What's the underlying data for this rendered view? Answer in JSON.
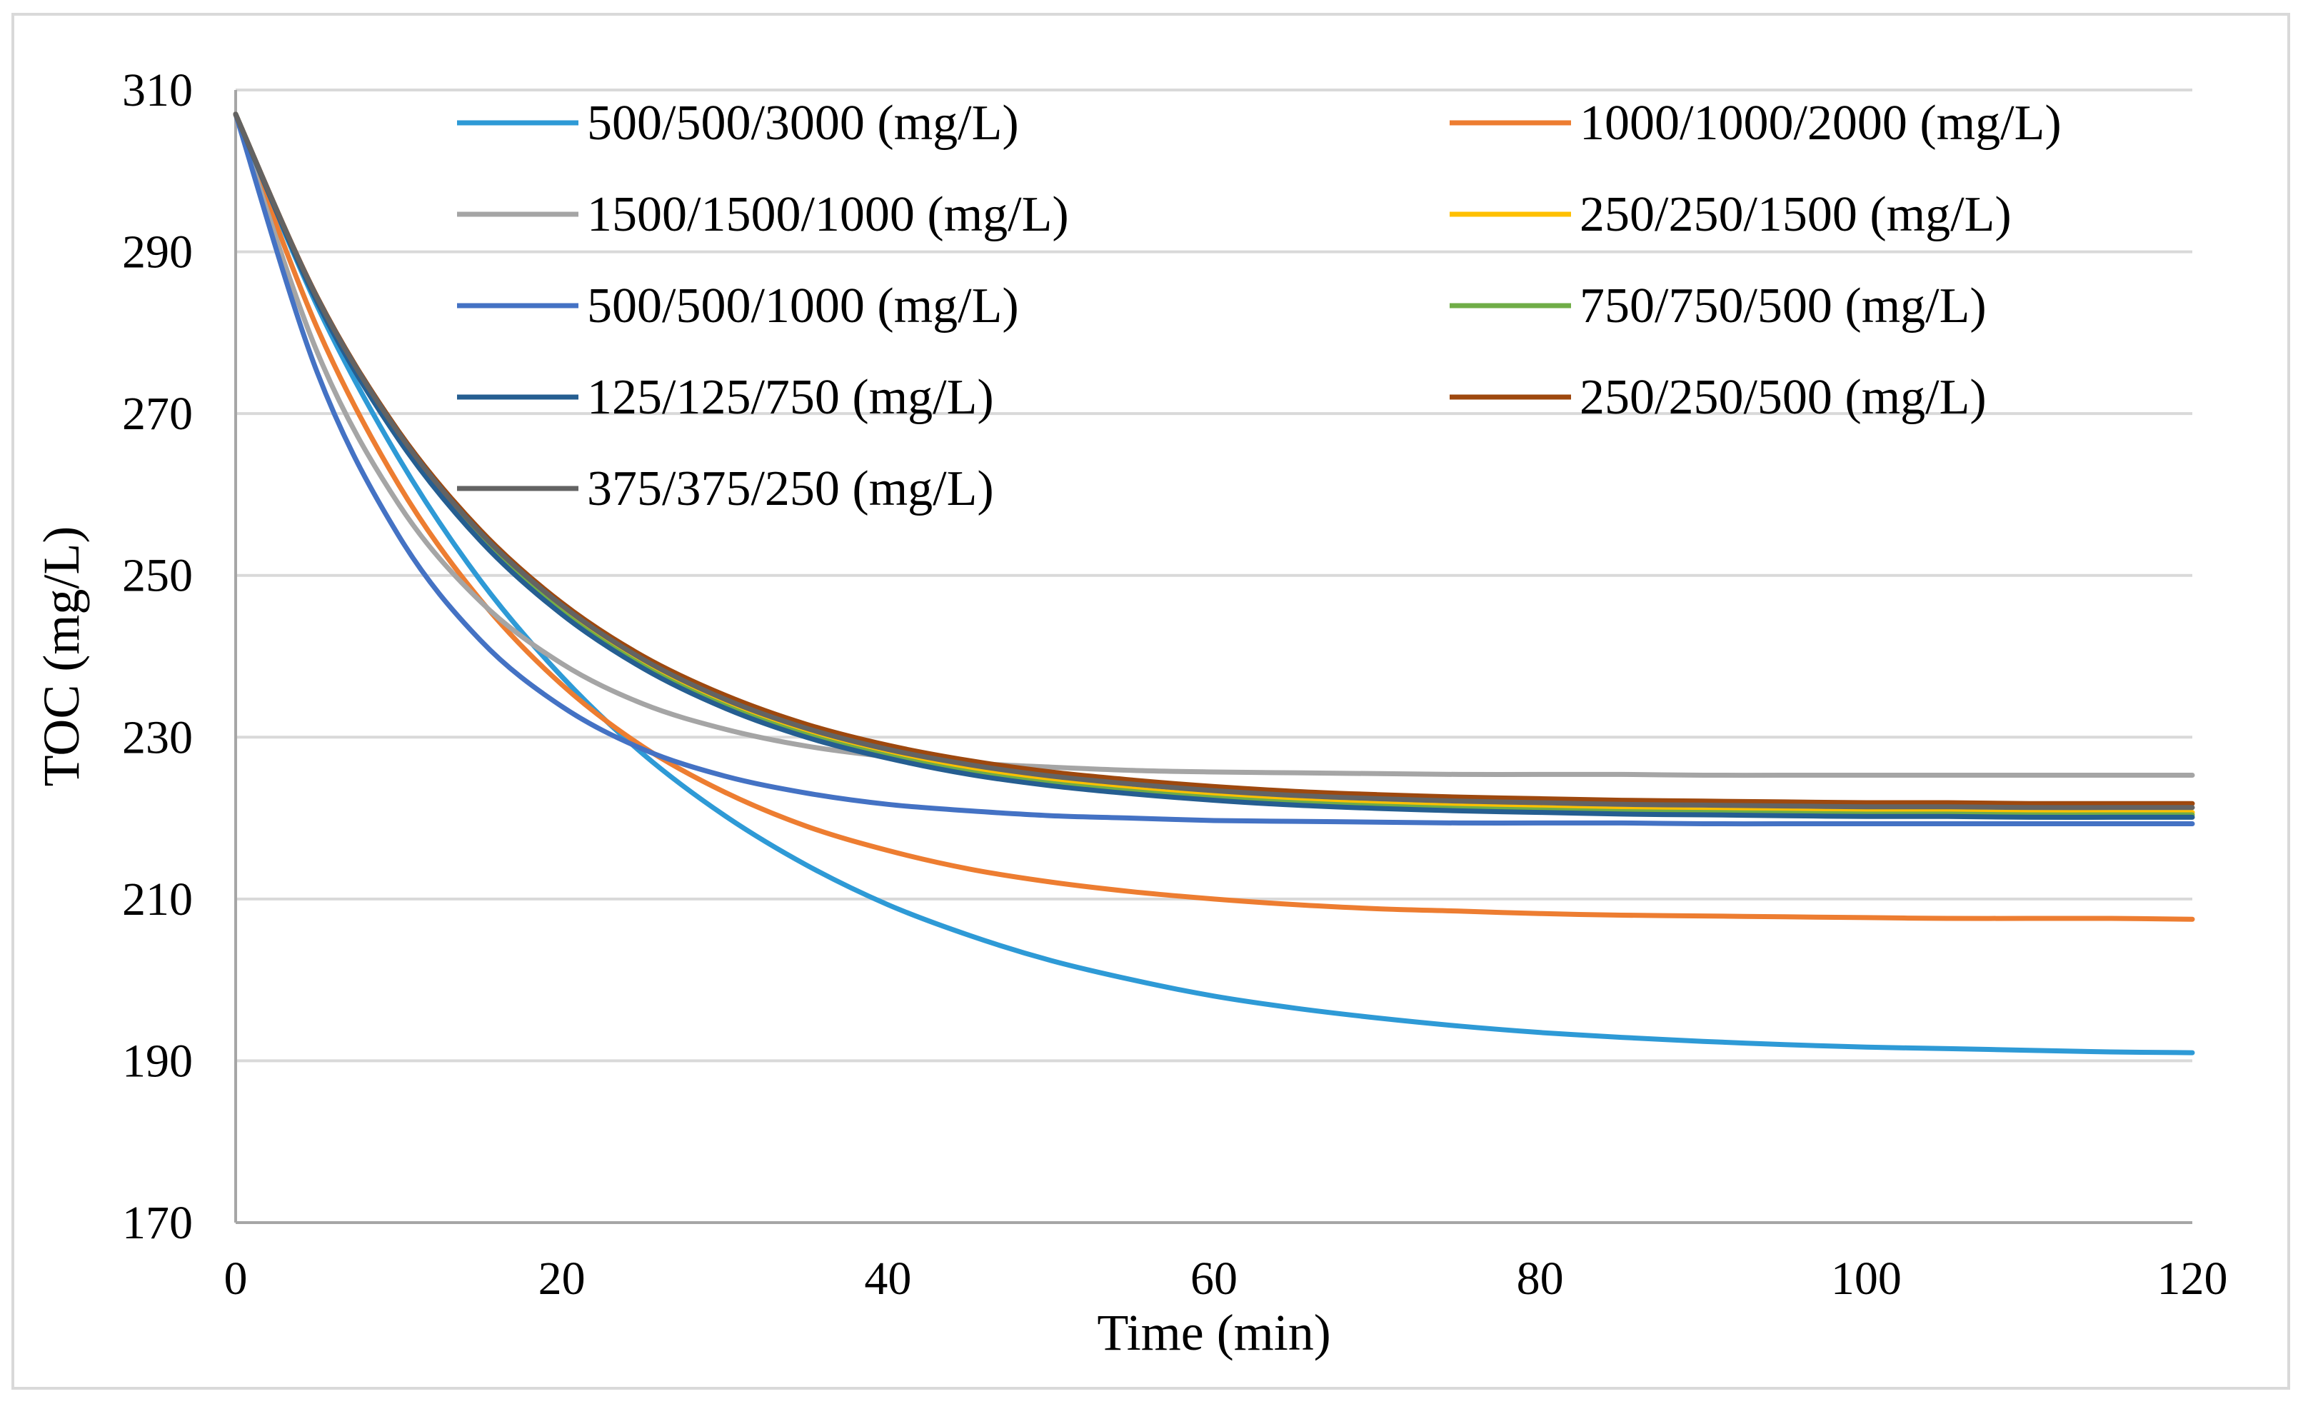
{
  "chart_data": {
    "type": "line",
    "title": "",
    "xlabel": "Time  (min)",
    "ylabel": "TOC (mg/L)",
    "xlim": [
      0,
      120
    ],
    "ylim": [
      170,
      310
    ],
    "xticks": [
      0,
      20,
      40,
      60,
      80,
      100,
      120
    ],
    "yticks": [
      170,
      190,
      210,
      230,
      250,
      270,
      290,
      310
    ],
    "grid": "horizontal",
    "legend_position": "top-inside",
    "x": [
      0,
      5,
      10,
      15,
      20,
      25,
      30,
      35,
      40,
      45,
      50,
      55,
      60,
      65,
      70,
      75,
      80,
      85,
      90,
      95,
      100,
      105,
      110,
      115,
      120
    ],
    "series": [
      {
        "name": "500/500/3000 (mg/L)",
        "color": "#2e9ad6",
        "values": [
          307,
          283.3,
          264.5,
          249.4,
          237.5,
          227.9,
          220.3,
          214.2,
          209.3,
          205.5,
          202.4,
          200.0,
          198.0,
          196.5,
          195.3,
          194.3,
          193.5,
          192.9,
          192.4,
          192.0,
          191.7,
          191.5,
          191.3,
          191.1,
          191.0
        ]
      },
      {
        "name": "1000/1000/2000 (mg/L)",
        "color": "#ed7d31",
        "values": [
          307,
          280.6,
          261.2,
          247.0,
          236.5,
          228.8,
          223.2,
          219.0,
          216.0,
          213.7,
          212.1,
          210.9,
          210.0,
          209.3,
          208.8,
          208.5,
          208.2,
          208.0,
          207.9,
          207.8,
          207.7,
          207.6,
          207.6,
          207.6,
          207.5
        ]
      },
      {
        "name": "1500/1500/1000 (mg/L)",
        "color": "#a5a5a5",
        "values": [
          307,
          277.6,
          258.8,
          246.8,
          239.1,
          234.1,
          231.0,
          228.9,
          227.6,
          226.8,
          226.3,
          225.9,
          225.7,
          225.6,
          225.5,
          225.4,
          225.4,
          225.4,
          225.3,
          225.3,
          225.3,
          225.3,
          225.3,
          225.3,
          225.3
        ]
      },
      {
        "name": "250/250/1500 (mg/L)",
        "color": "#ffc000",
        "values": [
          307,
          284.2,
          267.4,
          255.1,
          246.0,
          239.3,
          234.4,
          230.7,
          228.1,
          226.1,
          224.7,
          223.6,
          222.8,
          222.2,
          221.8,
          221.5,
          221.3,
          221.1,
          221.0,
          220.9,
          220.8,
          220.8,
          220.7,
          220.7,
          220.7
        ]
      },
      {
        "name": "500/500/1000 (mg/L)",
        "color": "#4472c4",
        "values": [
          307,
          275.1,
          254.9,
          242.0,
          233.8,
          228.5,
          225.2,
          223.1,
          221.7,
          220.9,
          220.3,
          220.0,
          219.7,
          219.6,
          219.5,
          219.4,
          219.4,
          219.4,
          219.3,
          219.3,
          219.3,
          219.3,
          219.3,
          219.3,
          219.3
        ]
      },
      {
        "name": "750/750/500 (mg/L)",
        "color": "#70ad47",
        "values": [
          307,
          283.9,
          267.0,
          254.6,
          245.5,
          238.8,
          233.9,
          230.3,
          227.7,
          225.7,
          224.3,
          223.3,
          222.5,
          221.9,
          221.5,
          221.2,
          221.0,
          220.8,
          220.7,
          220.6,
          220.5,
          220.5,
          220.4,
          220.4,
          220.4
        ]
      },
      {
        "name": "125/125/750 (mg/L)",
        "color": "#255e91",
        "values": [
          307,
          283.8,
          266.8,
          254.3,
          245.2,
          238.5,
          233.6,
          230.0,
          227.4,
          225.4,
          224.0,
          223.0,
          222.2,
          221.6,
          221.2,
          220.9,
          220.7,
          220.5,
          220.4,
          220.3,
          220.2,
          220.2,
          220.1,
          220.1,
          220.1
        ]
      },
      {
        "name": "250/250/500 (mg/L)",
        "color": "#9e480e",
        "values": [
          307,
          284.4,
          267.8,
          255.6,
          246.6,
          240.0,
          235.2,
          231.6,
          229.0,
          227.1,
          225.7,
          224.7,
          223.9,
          223.3,
          222.9,
          222.6,
          222.4,
          222.2,
          222.1,
          222.0,
          221.9,
          221.9,
          221.8,
          221.8,
          221.8
        ]
      },
      {
        "name": "375/375/250 (mg/L)",
        "color": "#636363",
        "values": [
          307,
          284.3,
          267.6,
          255.3,
          246.3,
          239.6,
          234.7,
          231.1,
          228.5,
          226.6,
          225.2,
          224.2,
          223.4,
          222.8,
          222.4,
          222.1,
          221.9,
          221.7,
          221.6,
          221.5,
          221.4,
          221.4,
          221.3,
          221.3,
          221.3
        ]
      }
    ]
  }
}
